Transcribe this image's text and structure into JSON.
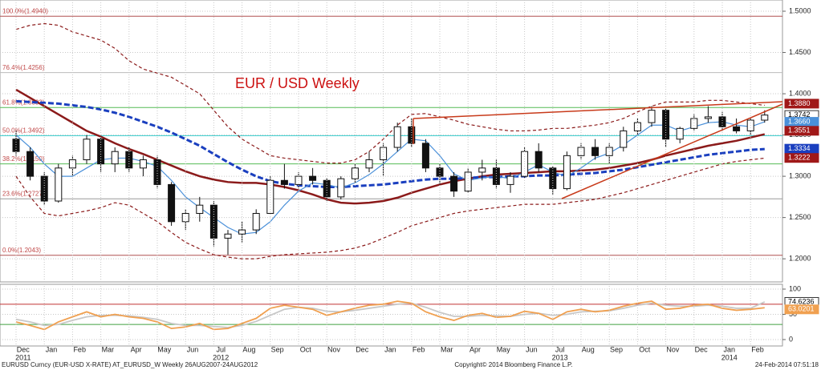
{
  "chart_data": [
    {
      "type": "candlestick",
      "title": "EUR / USD Weekly",
      "open": [
        1.345,
        1.33,
        1.3,
        1.27,
        1.31,
        1.32,
        1.345,
        1.315,
        1.33,
        1.31,
        1.32,
        1.29,
        1.245,
        1.255,
        1.265,
        1.225,
        1.23,
        1.235,
        1.255,
        1.295,
        1.29,
        1.3,
        1.295,
        1.275,
        1.297,
        1.31,
        1.32,
        1.335,
        1.36,
        1.34,
        1.31,
        1.3,
        1.282,
        1.305,
        1.31,
        1.29,
        1.3,
        1.33,
        1.31,
        1.285,
        1.325,
        1.335,
        1.325,
        1.335,
        1.355,
        1.365,
        1.38,
        1.345,
        1.358,
        1.37,
        1.372,
        1.36,
        1.355,
        1.368
      ],
      "high": [
        1.355,
        1.335,
        1.305,
        1.315,
        1.325,
        1.35,
        1.348,
        1.335,
        1.335,
        1.325,
        1.325,
        1.293,
        1.26,
        1.275,
        1.27,
        1.235,
        1.245,
        1.26,
        1.3,
        1.315,
        1.305,
        1.31,
        1.298,
        1.3,
        1.315,
        1.33,
        1.34,
        1.365,
        1.37,
        1.345,
        1.315,
        1.305,
        1.31,
        1.32,
        1.32,
        1.305,
        1.335,
        1.34,
        1.312,
        1.33,
        1.34,
        1.345,
        1.34,
        1.36,
        1.37,
        1.385,
        1.382,
        1.36,
        1.375,
        1.385,
        1.378,
        1.37,
        1.37,
        1.38
      ],
      "low": [
        1.325,
        1.295,
        1.265,
        1.268,
        1.3,
        1.315,
        1.305,
        1.305,
        1.305,
        1.3,
        1.285,
        1.24,
        1.235,
        1.245,
        1.215,
        1.205,
        1.22,
        1.23,
        1.255,
        1.285,
        1.285,
        1.29,
        1.27,
        1.272,
        1.292,
        1.305,
        1.3,
        1.33,
        1.335,
        1.305,
        1.29,
        1.275,
        1.28,
        1.295,
        1.285,
        1.28,
        1.298,
        1.305,
        1.278,
        1.283,
        1.32,
        1.32,
        1.315,
        1.33,
        1.35,
        1.36,
        1.335,
        1.34,
        1.355,
        1.365,
        1.355,
        1.352,
        1.35,
        1.365
      ],
      "close": [
        1.33,
        1.3,
        1.27,
        1.31,
        1.32,
        1.345,
        1.315,
        1.33,
        1.31,
        1.32,
        1.29,
        1.245,
        1.255,
        1.265,
        1.225,
        1.23,
        1.235,
        1.255,
        1.295,
        1.29,
        1.3,
        1.295,
        1.275,
        1.297,
        1.31,
        1.32,
        1.335,
        1.36,
        1.34,
        1.31,
        1.3,
        1.282,
        1.305,
        1.31,
        1.29,
        1.3,
        1.33,
        1.31,
        1.285,
        1.325,
        1.335,
        1.325,
        1.335,
        1.355,
        1.365,
        1.38,
        1.345,
        1.358,
        1.37,
        1.372,
        1.36,
        1.355,
        1.368,
        1.3742
      ],
      "lines": [
        {
          "color": "#8b1a1a",
          "dash": "4,3",
          "width": 1.2,
          "values": [
            1.478,
            1.483,
            1.485,
            1.483,
            1.475,
            1.47,
            1.465,
            1.455,
            1.44,
            1.43,
            1.425,
            1.42,
            1.41,
            1.4,
            1.38,
            1.36,
            1.345,
            1.335,
            1.325,
            1.322,
            1.32,
            1.318,
            1.316,
            1.316,
            1.32,
            1.33,
            1.345,
            1.362,
            1.375,
            1.376,
            1.372,
            1.368,
            1.363,
            1.36,
            1.357,
            1.355,
            1.355,
            1.356,
            1.358,
            1.358,
            1.36,
            1.362,
            1.365,
            1.37,
            1.378,
            1.385,
            1.39,
            1.39,
            1.39,
            1.392,
            1.392,
            1.39,
            1.388,
            1.386
          ]
        },
        {
          "color": "#8b1a1a",
          "dash": "4,3",
          "width": 1.2,
          "values": [
            1.3,
            1.275,
            1.255,
            1.252,
            1.255,
            1.258,
            1.262,
            1.268,
            1.265,
            1.255,
            1.245,
            1.232,
            1.22,
            1.212,
            1.205,
            1.202,
            1.2,
            1.2,
            1.203,
            1.205,
            1.206,
            1.207,
            1.208,
            1.21,
            1.213,
            1.218,
            1.225,
            1.232,
            1.24,
            1.245,
            1.25,
            1.255,
            1.258,
            1.26,
            1.262,
            1.264,
            1.266,
            1.266,
            1.266,
            1.268,
            1.27,
            1.272,
            1.276,
            1.28,
            1.285,
            1.29,
            1.295,
            1.3,
            1.305,
            1.31,
            1.315,
            1.318,
            1.32,
            1.322
          ]
        },
        {
          "color": "#8b1a1a",
          "dash": "none",
          "width": 2.5,
          "values": [
            1.405,
            1.395,
            1.385,
            1.375,
            1.365,
            1.355,
            1.348,
            1.34,
            1.333,
            1.327,
            1.32,
            1.313,
            1.306,
            1.3,
            1.296,
            1.293,
            1.292,
            1.292,
            1.29,
            1.287,
            1.283,
            1.278,
            1.272,
            1.268,
            1.267,
            1.268,
            1.27,
            1.274,
            1.28,
            1.285,
            1.29,
            1.294,
            1.297,
            1.3,
            1.302,
            1.303,
            1.304,
            1.305,
            1.306,
            1.306,
            1.307,
            1.308,
            1.31,
            1.313,
            1.316,
            1.32,
            1.325,
            1.329,
            1.333,
            1.337,
            1.34,
            1.343,
            1.347,
            1.351
          ]
        },
        {
          "color": "#1a3fbf",
          "dash": "7,3",
          "width": 3,
          "values": [
            1.391,
            1.39,
            1.389,
            1.388,
            1.386,
            1.384,
            1.381,
            1.377,
            1.372,
            1.366,
            1.36,
            1.353,
            1.345,
            1.337,
            1.327,
            1.317,
            1.308,
            1.3,
            1.294,
            1.291,
            1.289,
            1.288,
            1.287,
            1.287,
            1.288,
            1.289,
            1.29,
            1.292,
            1.294,
            1.296,
            1.297,
            1.297,
            1.298,
            1.299,
            1.299,
            1.3,
            1.3,
            1.301,
            1.301,
            1.302,
            1.303,
            1.304,
            1.306,
            1.308,
            1.311,
            1.314,
            1.317,
            1.32,
            1.323,
            1.326,
            1.328,
            1.33,
            1.332,
            1.333
          ]
        },
        {
          "color": "#4a90d9",
          "dash": "none",
          "width": 1.2,
          "values": [
            1.35,
            1.335,
            1.315,
            1.3,
            1.3,
            1.31,
            1.32,
            1.322,
            1.322,
            1.318,
            1.312,
            1.295,
            1.275,
            1.262,
            1.25,
            1.238,
            1.23,
            1.232,
            1.245,
            1.265,
            1.282,
            1.292,
            1.29,
            1.286,
            1.292,
            1.302,
            1.315,
            1.33,
            1.345,
            1.343,
            1.325,
            1.303,
            1.295,
            1.298,
            1.3,
            1.297,
            1.305,
            1.314,
            1.305,
            1.3,
            1.31,
            1.322,
            1.328,
            1.338,
            1.35,
            1.362,
            1.362,
            1.355,
            1.36,
            1.365,
            1.366,
            1.362,
            1.36,
            1.366
          ]
        }
      ],
      "levels": [
        {
          "value": 1.494,
          "label": "100.0%(1.4940)",
          "color": "#b05050"
        },
        {
          "value": 1.4256,
          "label": "76.4%(1.4256)",
          "color": "#bbbbbb"
        },
        {
          "value": 1.3833,
          "label": "61.8%(1.3833)",
          "color": "#55bb55"
        },
        {
          "value": 1.3492,
          "label": "50.0%(1.3492)",
          "color": "#33cccc"
        },
        {
          "value": 1.315,
          "label": "38.2%(1.3150)",
          "color": "#55bb55"
        },
        {
          "value": 1.2727,
          "label": "23.6%(1.2727)",
          "color": "#999999"
        },
        {
          "value": 1.2043,
          "label": "0.0%(1.2043)",
          "color": "#b05050"
        }
      ],
      "tags": [
        {
          "value": 1.388,
          "label": "1.3880",
          "color": "#a01818"
        },
        {
          "value": 1.3742,
          "label": "1.3742",
          "color": "#ffffff"
        },
        {
          "value": 1.366,
          "label": "1.3660",
          "color": "#4a90d9"
        },
        {
          "value": 1.3551,
          "label": "1.3551",
          "color": "#a01818"
        },
        {
          "value": 1.3334,
          "label": "1.3334",
          "color": "#1a3fbf"
        },
        {
          "value": 1.3222,
          "label": "1.3222",
          "color": "#a01818"
        }
      ],
      "ylim": [
        1.172,
        1.5136
      ],
      "yticks": [
        {
          "value": 1.2,
          "label": "1.2000"
        },
        {
          "value": 1.25,
          "label": "1.2500"
        },
        {
          "value": 1.3,
          "label": "1.3000"
        },
        {
          "value": 1.35,
          "label": "1.3500"
        },
        {
          "value": 1.4,
          "label": "1.4000"
        },
        {
          "value": 1.45,
          "label": "1.4500"
        },
        {
          "value": 1.5,
          "label": "1.5000"
        }
      ],
      "grid": true
    },
    {
      "type": "line",
      "categories": [
        "Dec",
        null,
        "Jan",
        null,
        "Feb",
        null,
        "Mar",
        null,
        "Apr",
        null,
        "May",
        null,
        "Jun",
        null,
        "Jul",
        null,
        "Aug",
        null,
        "Sep",
        null,
        "Oct",
        null,
        "Nov",
        null,
        "Dec",
        null,
        "Jan",
        null,
        "Feb",
        null,
        "Mar",
        null,
        "Apr",
        null,
        "May",
        null,
        "Jun",
        null,
        "Jul",
        null,
        "Aug",
        null,
        "Sep",
        null,
        "Oct",
        null,
        "Nov",
        null,
        "Dec",
        null,
        "Jan",
        null,
        "Feb",
        null
      ],
      "year_labels": [
        "2011",
        null,
        null,
        null,
        null,
        null,
        null,
        null,
        null,
        null,
        null,
        null,
        null,
        null,
        "2012",
        null,
        null,
        null,
        null,
        null,
        null,
        null,
        null,
        null,
        null,
        null,
        null,
        null,
        null,
        null,
        null,
        null,
        null,
        null,
        null,
        null,
        null,
        null,
        "2013",
        null,
        null,
        null,
        null,
        null,
        null,
        null,
        null,
        null,
        null,
        null,
        "2014",
        null,
        null,
        null
      ],
      "series": [
        {
          "color": "#c8c8c8",
          "values": [
            40,
            35,
            28,
            30,
            38,
            45,
            48,
            48,
            47,
            44,
            40,
            32,
            28,
            28,
            26,
            24,
            28,
            36,
            48,
            60,
            64,
            62,
            56,
            55,
            58,
            62,
            66,
            70,
            72,
            64,
            54,
            46,
            46,
            48,
            47,
            46,
            50,
            52,
            48,
            50,
            55,
            56,
            57,
            62,
            68,
            72,
            68,
            66,
            66,
            68,
            66,
            62,
            62,
            74.6236
          ]
        },
        {
          "color": "#f0a050",
          "values": [
            35,
            28,
            20,
            35,
            45,
            55,
            45,
            50,
            45,
            42,
            35,
            22,
            25,
            32,
            20,
            22,
            32,
            42,
            62,
            68,
            64,
            60,
            48,
            55,
            62,
            68,
            70,
            76,
            72,
            55,
            45,
            38,
            48,
            52,
            44,
            46,
            56,
            52,
            40,
            55,
            60,
            55,
            58,
            66,
            72,
            76,
            60,
            62,
            68,
            70,
            62,
            58,
            60,
            63.0201
          ]
        }
      ],
      "levels": [
        {
          "value": 70,
          "color": "#c03030"
        },
        {
          "value": 30,
          "color": "#40a040"
        }
      ],
      "ylim": [
        -12.7,
        109.5
      ],
      "yticks": [
        0,
        50,
        100
      ],
      "grid": true
    }
  ],
  "footer": {
    "left": "EURUSD Curncy (EUR-USD X-RATE) AT_EURUSD_W Weekly 26AUG2007-24AUG2012",
    "center": "Copyright© 2014 Bloomberg Finance L.P.",
    "right": "24-Feb-2014 07:51:18"
  }
}
